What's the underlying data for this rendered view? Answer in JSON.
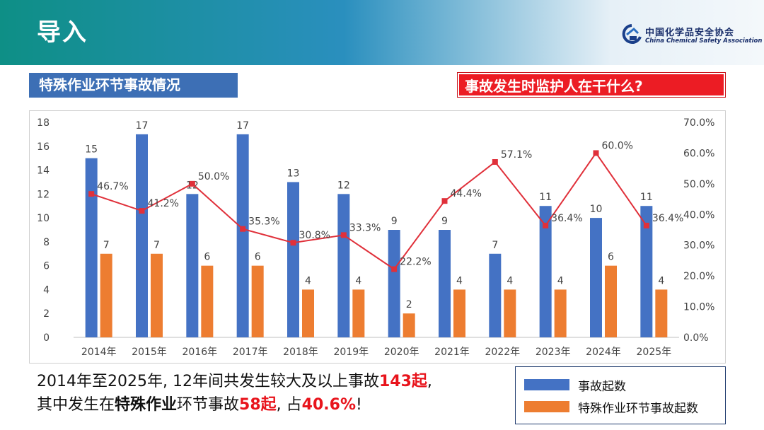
{
  "header": {
    "title": "导入"
  },
  "logo": {
    "cn": "中国化学品安全协会",
    "en": "China Chemical Safety Association"
  },
  "section_title": "特殊作业环节事故情况",
  "question": "事故发生时监护人在干什么?",
  "colors": {
    "bar_total": "#4472c4",
    "bar_special": "#ed7d31",
    "line": "#e0303a"
  },
  "chart_data": {
    "type": "bar",
    "categories": [
      "2014年",
      "2015年",
      "2016年",
      "2017年",
      "2018年",
      "2019年",
      "2020年",
      "2021年",
      "2022年",
      "2023年",
      "2024年",
      "2025年"
    ],
    "series": [
      {
        "name": "事故起数",
        "type": "bar",
        "axis": "left",
        "values": [
          15,
          17,
          12,
          17,
          13,
          12,
          9,
          9,
          7,
          11,
          10,
          11
        ]
      },
      {
        "name": "特殊作业环节事故起数",
        "type": "bar",
        "axis": "left",
        "values": [
          7,
          7,
          6,
          6,
          4,
          4,
          2,
          4,
          4,
          4,
          6,
          4
        ]
      },
      {
        "type": "line",
        "axis": "right",
        "values": [
          46.7,
          41.2,
          50.0,
          35.3,
          30.8,
          33.3,
          22.2,
          44.4,
          57.1,
          36.4,
          60.0,
          36.4
        ],
        "labels": [
          "46.7%",
          "41.2%",
          "50.0%",
          "35.3%",
          "30.8%",
          "33.3%",
          "22.2%",
          "44.4%",
          "57.1%",
          "36.4%",
          "60.0%",
          "36.4%"
        ]
      }
    ],
    "ylim_left": [
      0,
      18
    ],
    "yticks_left": [
      "0",
      "2",
      "4",
      "6",
      "8",
      "10",
      "12",
      "14",
      "16",
      "18"
    ],
    "ylim_right": [
      0,
      70
    ],
    "yticks_right": [
      "0.0%",
      "10.0%",
      "20.0%",
      "30.0%",
      "40.0%",
      "50.0%",
      "60.0%",
      "70.0%"
    ],
    "grid": false,
    "legend": "bottom-right"
  },
  "summary": {
    "line1_a": "2014年至2025年, 12年间共发生较大及以上事故",
    "line1_b": "143起",
    "line1_c": ",",
    "line2_a": "其中发生在",
    "line2_b": "特殊作业",
    "line2_c": "环节事故",
    "line2_d": "58起",
    "line2_e": ", 占",
    "line2_f": "40.6%",
    "line2_g": "!"
  }
}
